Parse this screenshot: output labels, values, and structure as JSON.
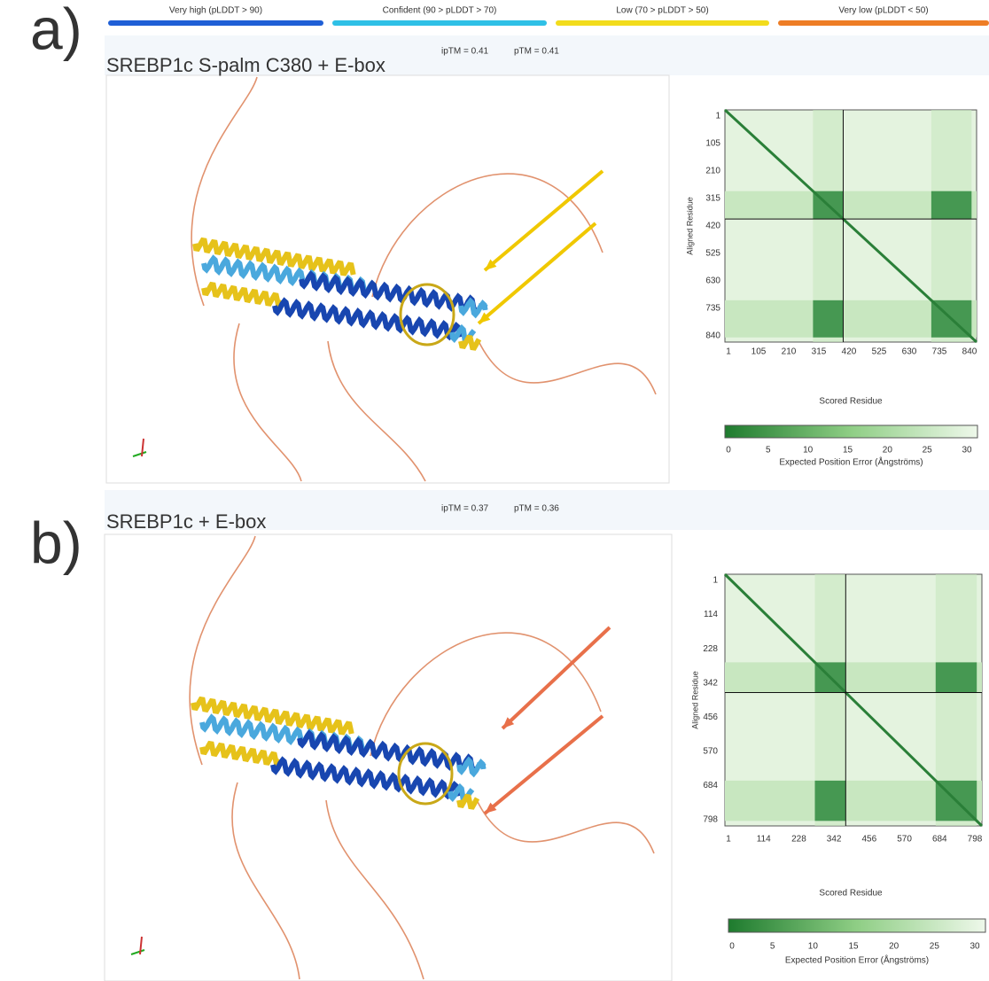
{
  "legend": [
    {
      "label": "Very high (pLDDT > 90)",
      "color": "#1f5fd6"
    },
    {
      "label": "Confident (90 > pLDDT > 70)",
      "color": "#2fc0e6"
    },
    {
      "label": "Low (70 > pLDDT > 50)",
      "color": "#f2dc1c"
    },
    {
      "label": "Very low (pLDDT < 50)",
      "color": "#ee7d25"
    }
  ],
  "panels": [
    {
      "label": "a)",
      "title": "SREBP1c S-palm C380 + E-box",
      "iptm": "ipTM = 0.41",
      "ptm": "pTM = 0.41",
      "pae": {
        "yticks": [
          "1",
          "105",
          "210",
          "315",
          "420",
          "525",
          "630",
          "735",
          "840"
        ],
        "xticks": [
          "1",
          "105",
          "210",
          "315",
          "420",
          "525",
          "630",
          "735",
          "840"
        ],
        "y_label": "Aligned Residue",
        "x_label": "Scored Residue",
        "colorbar_ticks": [
          "0",
          "5",
          "10",
          "15",
          "20",
          "25",
          "30"
        ],
        "colorbar_label": "Expected Position Error (Ångströms)"
      }
    },
    {
      "label": "b)",
      "title": "SREBP1c + E-box",
      "iptm": "ipTM = 0.37",
      "ptm": "pTM = 0.36",
      "pae": {
        "yticks": [
          "1",
          "114",
          "228",
          "342",
          "456",
          "570",
          "684",
          "798"
        ],
        "xticks": [
          "1",
          "114",
          "228",
          "342",
          "456",
          "570",
          "684",
          "798"
        ],
        "y_label": "Aligned Residue",
        "x_label": "Scored Residue",
        "colorbar_ticks": [
          "0",
          "5",
          "10",
          "15",
          "20",
          "25",
          "30"
        ],
        "colorbar_label": "Expected Position Error (Ångströms)"
      }
    }
  ]
}
